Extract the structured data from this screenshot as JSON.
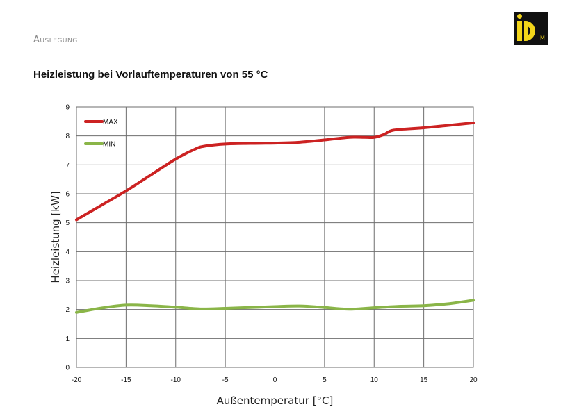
{
  "header": {
    "section": "Auslegung",
    "logo": {
      "main": "iD",
      "sub": "M"
    }
  },
  "chart_data": {
    "type": "line",
    "title": "Heizleistung bei Vorlauftemperaturen von 55 °C",
    "xlabel": "Außentemperatur [°C]",
    "ylabel": "Heizleistung [kW]",
    "xlim": [
      -20,
      20
    ],
    "ylim": [
      0,
      9
    ],
    "xticks": [
      -20,
      -15,
      -10,
      -5,
      0,
      5,
      10,
      15,
      20
    ],
    "yticks": [
      0,
      1,
      2,
      3,
      4,
      5,
      6,
      7,
      8,
      9
    ],
    "grid": true,
    "legend": "top-left",
    "series": [
      {
        "name": "MAX",
        "color": "#cc2222",
        "x": [
          -20,
          -17.5,
          -15,
          -12.5,
          -10,
          -8,
          -7,
          -5,
          -2.5,
          0,
          2.5,
          5,
          7.5,
          9,
          10,
          11,
          12,
          15,
          20
        ],
        "y": [
          5.1,
          5.6,
          6.1,
          6.65,
          7.2,
          7.55,
          7.65,
          7.72,
          7.74,
          7.75,
          7.78,
          7.86,
          7.95,
          7.95,
          7.95,
          8.05,
          8.2,
          8.28,
          8.45
        ]
      },
      {
        "name": "MIN",
        "color": "#8ab548",
        "x": [
          -20,
          -17.5,
          -15,
          -12.5,
          -10,
          -7.5,
          -5,
          -2.5,
          0,
          2.5,
          5,
          7.5,
          10,
          12.5,
          15,
          17.5,
          20
        ],
        "y": [
          1.9,
          2.05,
          2.15,
          2.13,
          2.08,
          2.02,
          2.04,
          2.07,
          2.1,
          2.12,
          2.07,
          2.01,
          2.06,
          2.11,
          2.13,
          2.2,
          2.32
        ]
      }
    ]
  }
}
